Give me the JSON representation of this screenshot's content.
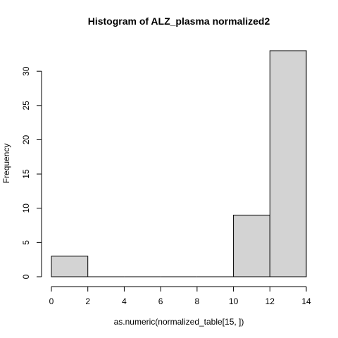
{
  "chart_data": {
    "type": "bar",
    "title": "Histogram of  ALZ_plasma normalized2",
    "xlabel": "as.numeric(normalized_table[15, ])",
    "ylabel": "Frequency",
    "bins": [
      {
        "from": 0,
        "to": 2,
        "count": 3
      },
      {
        "from": 2,
        "to": 4,
        "count": 0
      },
      {
        "from": 4,
        "to": 6,
        "count": 0
      },
      {
        "from": 6,
        "to": 8,
        "count": 0
      },
      {
        "from": 8,
        "to": 10,
        "count": 0
      },
      {
        "from": 10,
        "to": 12,
        "count": 9
      },
      {
        "from": 12,
        "to": 14,
        "count": 33
      }
    ],
    "xlim": [
      0,
      14
    ],
    "ylim": [
      0,
      33
    ],
    "x_ticks": [
      0,
      2,
      4,
      6,
      8,
      10,
      12,
      14
    ],
    "y_ticks": [
      0,
      5,
      10,
      15,
      20,
      25,
      30
    ],
    "bar_color": "#d3d3d3",
    "grid": false
  }
}
